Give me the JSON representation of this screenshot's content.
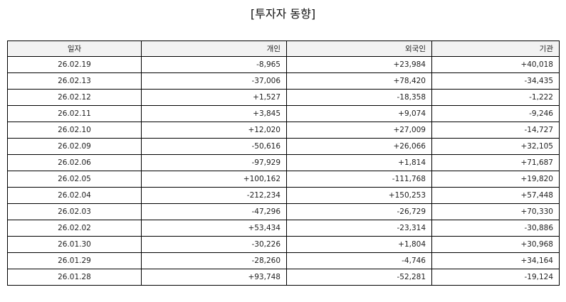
{
  "title": "[투자자 동향]",
  "colors": {
    "positive": "#e03030",
    "negative": "#3535c0",
    "header_bg": "#f2f2f2"
  },
  "table": {
    "headers": [
      "일자",
      "개인",
      "외국인",
      "기관"
    ],
    "rows": [
      [
        "26.02.19",
        "-8,965",
        "+23,984",
        "+40,018"
      ],
      [
        "26.02.13",
        "-37,006",
        "+78,420",
        "-34,435"
      ],
      [
        "26.02.12",
        "+1,527",
        "-18,358",
        "-1,222"
      ],
      [
        "26.02.11",
        "+3,845",
        "+9,074",
        "-9,246"
      ],
      [
        "26.02.10",
        "+12,020",
        "+27,009",
        "-14,727"
      ],
      [
        "26.02.09",
        "-50,616",
        "+26,066",
        "+32,105"
      ],
      [
        "26.02.06",
        "-97,929",
        "+1,814",
        "+71,687"
      ],
      [
        "26.02.05",
        "+100,162",
        "-111,768",
        "+19,820"
      ],
      [
        "26.02.04",
        "-212,234",
        "+150,253",
        "+57,448"
      ],
      [
        "26.02.03",
        "-47,296",
        "-26,729",
        "+70,330"
      ],
      [
        "26.02.02",
        "+53,434",
        "-23,314",
        "-30,886"
      ],
      [
        "26.01.30",
        "-30,226",
        "+1,804",
        "+30,968"
      ],
      [
        "26.01.29",
        "-28,260",
        "-4,746",
        "+34,164"
      ],
      [
        "26.01.28",
        "+93,748",
        "-52,281",
        "-19,124"
      ]
    ]
  }
}
